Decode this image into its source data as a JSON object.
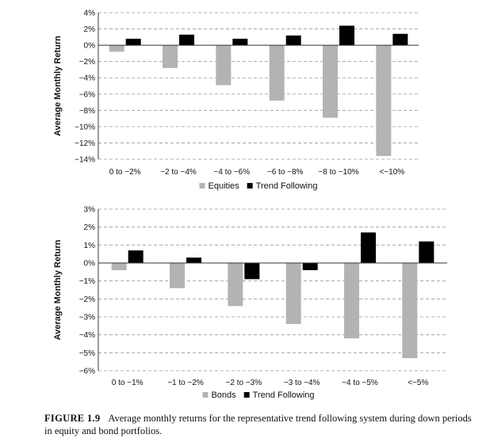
{
  "chart_data": [
    {
      "type": "bar",
      "ylabel": "Average Monthly Return",
      "categories": [
        "0 to −2%",
        "−2 to −4%",
        "−4 to −6%",
        "−6 to −8%",
        "−8 to −10%",
        "<−10%"
      ],
      "series": [
        {
          "name": "Equities",
          "color": "#b3b3b3",
          "values": [
            -0.8,
            -2.8,
            -4.9,
            -6.8,
            -8.9,
            -13.6
          ]
        },
        {
          "name": "Trend Following",
          "color": "#000000",
          "values": [
            0.8,
            1.3,
            0.8,
            1.2,
            2.4,
            1.4
          ]
        }
      ],
      "ylim": [
        -14,
        4
      ],
      "yticks": [
        4,
        2,
        0,
        -2,
        -4,
        -6,
        -8,
        -10,
        -12,
        -14
      ],
      "ytick_labels": [
        "4%",
        "2%",
        "0%",
        "−2%",
        "−4%",
        "−6%",
        "−8%",
        "−10%",
        "−12%",
        "−14%"
      ],
      "grid": "dashed horizontal",
      "legend": "bottom"
    },
    {
      "type": "bar",
      "ylabel": "Average Monthly Return",
      "categories": [
        "0 to −1%",
        "−1 to −2%",
        "−2 to −3%",
        "−3 to −4%",
        "−4 to −5%",
        "<−5%"
      ],
      "series": [
        {
          "name": "Bonds",
          "color": "#b3b3b3",
          "values": [
            -0.4,
            -1.4,
            -2.4,
            -3.4,
            -4.2,
            -5.3
          ]
        },
        {
          "name": "Trend Following",
          "color": "#000000",
          "values": [
            0.7,
            0.3,
            -0.9,
            -0.4,
            1.7,
            1.2
          ]
        }
      ],
      "ylim": [
        -6,
        3
      ],
      "yticks": [
        3,
        2,
        1,
        0,
        -1,
        -2,
        -3,
        -4,
        -5,
        -6
      ],
      "ytick_labels": [
        "3%",
        "2%",
        "1%",
        "0%",
        "−1%",
        "−2%",
        "−3%",
        "−4%",
        "−5%",
        "−6%"
      ],
      "grid": "dashed horizontal",
      "legend": "bottom"
    }
  ],
  "caption": {
    "label": "FIGURE 1.9",
    "text": "Average monthly returns for the representative trend following system during down periods in equity and bond portfolios."
  }
}
